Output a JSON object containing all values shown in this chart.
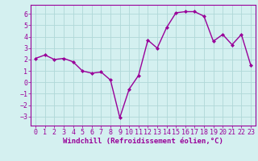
{
  "x": [
    0,
    1,
    2,
    3,
    4,
    5,
    6,
    7,
    8,
    9,
    10,
    11,
    12,
    13,
    14,
    15,
    16,
    17,
    18,
    19,
    20,
    21,
    22,
    23
  ],
  "y": [
    2.1,
    2.4,
    2.0,
    2.1,
    1.8,
    1.0,
    0.8,
    0.9,
    0.2,
    -3.1,
    -0.6,
    0.6,
    3.7,
    3.0,
    4.8,
    6.1,
    6.2,
    6.2,
    5.8,
    3.6,
    4.2,
    3.3,
    4.2,
    1.5
  ],
  "line_color": "#990099",
  "marker": "D",
  "marker_size": 2.0,
  "background_color": "#d4f0f0",
  "grid_color": "#b0d8d8",
  "xlabel": "Windchill (Refroidissement éolien,°C)",
  "xlabel_fontsize": 6.5,
  "tick_fontsize": 6.0,
  "ylim": [
    -3.8,
    6.8
  ],
  "xlim": [
    -0.5,
    23.5
  ],
  "yticks": [
    -3,
    -2,
    -1,
    0,
    1,
    2,
    3,
    4,
    5,
    6
  ],
  "xticks": [
    0,
    1,
    2,
    3,
    4,
    5,
    6,
    7,
    8,
    9,
    10,
    11,
    12,
    13,
    14,
    15,
    16,
    17,
    18,
    19,
    20,
    21,
    22,
    23
  ],
  "line_width": 1.0
}
